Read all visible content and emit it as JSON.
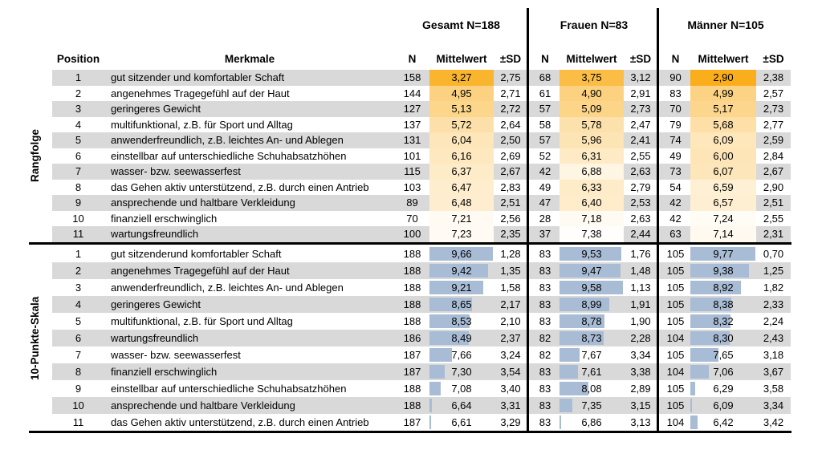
{
  "colors": {
    "heat_strong": "#FAAE1C",
    "bar_fill": "#A8BCD5",
    "stripe": "#D9D9D9",
    "line": "#000000"
  },
  "chart_data": {
    "type": "table",
    "groups": [
      "Gesamt N=188",
      "Frauen N=83",
      "Männer N=105"
    ],
    "column_headers": {
      "position": "Position",
      "merkmale": "Merkmale",
      "n": "N",
      "mittelwert": "Mittelwert",
      "sd": "±SD"
    },
    "value_order": [
      "n",
      "mittelwert",
      "sd"
    ],
    "sections": [
      {
        "name": "Rangfolge",
        "visual": "heatmap",
        "rows": [
          {
            "position": "1",
            "merkmal": "gut sitzender und komfortabler Schaft",
            "gesamt": [
              "158",
              "3,27",
              "2,75"
            ],
            "frauen": [
              "68",
              "3,75",
              "3,12"
            ],
            "maenner": [
              "90",
              "2,90",
              "2,38"
            ]
          },
          {
            "position": "2",
            "merkmal": "angenehmes Tragegefühl auf der Haut",
            "gesamt": [
              "144",
              "4,95",
              "2,71"
            ],
            "frauen": [
              "61",
              "4,90",
              "2,91"
            ],
            "maenner": [
              "83",
              "4,99",
              "2,57"
            ]
          },
          {
            "position": "3",
            "merkmal": "geringeres Gewicht",
            "gesamt": [
              "127",
              "5,13",
              "2,72"
            ],
            "frauen": [
              "57",
              "5,09",
              "2,73"
            ],
            "maenner": [
              "70",
              "5,17",
              "2,73"
            ]
          },
          {
            "position": "4",
            "merkmal": "multifunktional, z.B. für Sport und Alltag",
            "gesamt": [
              "137",
              "5,72",
              "2,64"
            ],
            "frauen": [
              "58",
              "5,78",
              "2,47"
            ],
            "maenner": [
              "79",
              "5,68",
              "2,77"
            ]
          },
          {
            "position": "5",
            "merkmal": "anwenderfreundlich, z.B. leichtes An- und Ablegen",
            "gesamt": [
              "131",
              "6,04",
              "2,50"
            ],
            "frauen": [
              "57",
              "5,96",
              "2,41"
            ],
            "maenner": [
              "74",
              "6,09",
              "2,59"
            ]
          },
          {
            "position": "6",
            "merkmal": "einstellbar auf unterschiedliche Schuhabsatzhöhen",
            "gesamt": [
              "101",
              "6,16",
              "2,69"
            ],
            "frauen": [
              "52",
              "6,31",
              "2,55"
            ],
            "maenner": [
              "49",
              "6,00",
              "2,84"
            ]
          },
          {
            "position": "7",
            "merkmal": "wasser- bzw. seewasserfest",
            "gesamt": [
              "115",
              "6,37",
              "2,67"
            ],
            "frauen": [
              "42",
              "6,88",
              "2,63"
            ],
            "maenner": [
              "73",
              "6,07",
              "2,67"
            ]
          },
          {
            "position": "8",
            "merkmal": "das Gehen aktiv unterstützend, z.B. durch einen Antrieb",
            "gesamt": [
              "103",
              "6,47",
              "2,83"
            ],
            "frauen": [
              "49",
              "6,33",
              "2,79"
            ],
            "maenner": [
              "54",
              "6,59",
              "2,90"
            ]
          },
          {
            "position": "9",
            "merkmal": "ansprechende und haltbare Verkleidung",
            "gesamt": [
              "89",
              "6,48",
              "2,51"
            ],
            "frauen": [
              "47",
              "6,40",
              "2,53"
            ],
            "maenner": [
              "42",
              "6,57",
              "2,51"
            ]
          },
          {
            "position": "10",
            "merkmal": "finanziell erschwinglich",
            "gesamt": [
              "70",
              "7,21",
              "2,56"
            ],
            "frauen": [
              "28",
              "7,18",
              "2,63"
            ],
            "maenner": [
              "42",
              "7,24",
              "2,55"
            ]
          },
          {
            "position": "11",
            "merkmal": "wartungsfreundlich",
            "gesamt": [
              "100",
              "7,23",
              "2,35"
            ],
            "frauen": [
              "37",
              "7,38",
              "2,44"
            ],
            "maenner": [
              "63",
              "7,14",
              "2,31"
            ]
          }
        ]
      },
      {
        "name": "10-Punkte-Skala",
        "visual": "databars",
        "rows": [
          {
            "position": "1",
            "merkmal": "gut sitzenderund komfortabler Schaft",
            "gesamt": [
              "188",
              "9,66",
              "1,28"
            ],
            "frauen": [
              "83",
              "9,53",
              "1,76"
            ],
            "maenner": [
              "105",
              "9,77",
              "0,70"
            ]
          },
          {
            "position": "2",
            "merkmal": "angenehmes Tragegefühl auf der Haut",
            "gesamt": [
              "188",
              "9,42",
              "1,35"
            ],
            "frauen": [
              "83",
              "9,47",
              "1,48"
            ],
            "maenner": [
              "105",
              "9,38",
              "1,25"
            ]
          },
          {
            "position": "3",
            "merkmal": "anwenderfreundlich, z.B. leichtes An- und Ablegen",
            "gesamt": [
              "188",
              "9,21",
              "1,58"
            ],
            "frauen": [
              "83",
              "9,58",
              "1,13"
            ],
            "maenner": [
              "105",
              "8,92",
              "1,82"
            ]
          },
          {
            "position": "4",
            "merkmal": "geringeres Gewicht",
            "gesamt": [
              "188",
              "8,65",
              "2,17"
            ],
            "frauen": [
              "83",
              "8,99",
              "1,91"
            ],
            "maenner": [
              "105",
              "8,38",
              "2,33"
            ]
          },
          {
            "position": "5",
            "merkmal": "multifunktional, z.B. für Sport und Alltag",
            "gesamt": [
              "188",
              "8,53",
              "2,10"
            ],
            "frauen": [
              "83",
              "8,78",
              "1,90"
            ],
            "maenner": [
              "105",
              "8,32",
              "2,24"
            ]
          },
          {
            "position": "6",
            "merkmal": "wartungsfreundlich",
            "gesamt": [
              "186",
              "8,49",
              "2,37"
            ],
            "frauen": [
              "82",
              "8,73",
              "2,28"
            ],
            "maenner": [
              "104",
              "8,30",
              "2,43"
            ]
          },
          {
            "position": "7",
            "merkmal": "wasser- bzw. seewasserfest",
            "gesamt": [
              "187",
              "7,66",
              "3,24"
            ],
            "frauen": [
              "82",
              "7,67",
              "3,34"
            ],
            "maenner": [
              "105",
              "7,65",
              "3,18"
            ]
          },
          {
            "position": "8",
            "merkmal": "finanziell erschwinglich",
            "gesamt": [
              "187",
              "7,30",
              "3,54"
            ],
            "frauen": [
              "83",
              "7,61",
              "3,38"
            ],
            "maenner": [
              "104",
              "7,06",
              "3,67"
            ]
          },
          {
            "position": "9",
            "merkmal": "einstellbar auf unterschiedliche Schuhabsatzhöhen",
            "gesamt": [
              "188",
              "7,08",
              "3,40"
            ],
            "frauen": [
              "83",
              "8,08",
              "2,89"
            ],
            "maenner": [
              "105",
              "6,29",
              "3,58"
            ]
          },
          {
            "position": "10",
            "merkmal": "ansprechende und haltbare Verkleidung",
            "gesamt": [
              "188",
              "6,64",
              "3,31"
            ],
            "frauen": [
              "83",
              "7,35",
              "3,15"
            ],
            "maenner": [
              "105",
              "6,09",
              "3,34"
            ]
          },
          {
            "position": "11",
            "merkmal": "das Gehen aktiv unterstützend, z.B. durch einen Antrieb",
            "gesamt": [
              "187",
              "6,61",
              "3,29"
            ],
            "frauen": [
              "83",
              "6,86",
              "3,13"
            ],
            "maenner": [
              "104",
              "6,42",
              "3,42"
            ]
          }
        ]
      }
    ]
  }
}
